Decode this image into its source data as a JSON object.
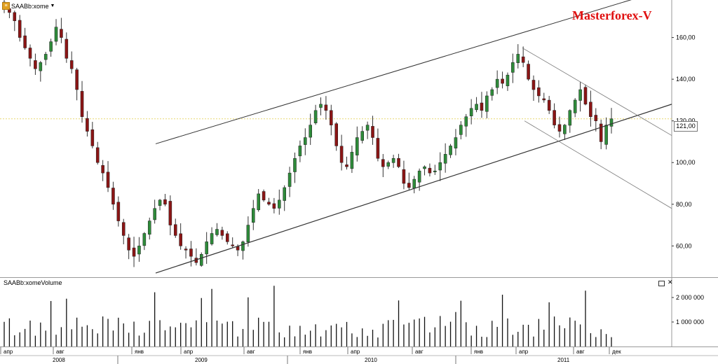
{
  "header": {
    "symbol_label": "SAABb:xome",
    "symbol_icon": "instrument-icon",
    "dropdown_icon": "chevron-down-icon"
  },
  "watermark": "Masterforex-V",
  "price_axis": {
    "ticks": [
      "160,00",
      "140,00",
      "120,00",
      "100,00",
      "80,00",
      "60,00"
    ],
    "last_price": "121,00"
  },
  "volume_pane": {
    "title": "SAABb:xomeVolume",
    "ticks": [
      "2 000 000",
      "1 000 000"
    ]
  },
  "time_axis": {
    "months": [
      "апр",
      "авг",
      "янв",
      "апр",
      "авг",
      "янв",
      "апр",
      "авг",
      "янв",
      "апр",
      "авг",
      "дек"
    ],
    "years": [
      "2008",
      "2009",
      "2010",
      "2011"
    ]
  },
  "chart_data": {
    "type": "candlestick",
    "price_unit": "SEK",
    "y_range": [
      45,
      178
    ],
    "volume_range": [
      0,
      2800000
    ],
    "colors": {
      "up": "#2e8b3a",
      "down": "#8b1515",
      "channel": "#555555",
      "last_price_line": "#e8d870"
    },
    "weekly_close_approx": [
      175,
      172,
      168,
      160,
      155,
      150,
      145,
      148,
      152,
      158,
      165,
      160,
      150,
      145,
      135,
      122,
      115,
      108,
      100,
      95,
      88,
      80,
      72,
      65,
      58,
      55,
      60,
      66,
      72,
      78,
      82,
      80,
      70,
      65,
      60,
      58,
      55,
      52,
      56,
      62,
      66,
      68,
      65,
      62,
      60,
      58,
      62,
      70,
      78,
      85,
      82,
      80,
      78,
      82,
      88,
      95,
      102,
      108,
      112,
      118,
      125,
      128,
      125,
      118,
      108,
      100,
      98,
      105,
      112,
      115,
      118,
      112,
      102,
      98,
      100,
      102,
      98,
      90,
      88,
      92,
      96,
      98,
      95,
      96,
      100,
      104,
      108,
      112,
      118,
      122,
      126,
      128,
      125,
      132,
      135,
      140,
      138,
      142,
      148,
      152,
      148,
      140,
      135,
      132,
      130,
      125,
      118,
      115,
      118,
      125,
      130,
      135,
      128,
      122,
      120,
      110,
      118,
      121
    ],
    "trend_lines": "ascending channel (upper and lower parallel lines), descending channel (two thin parallel lines)"
  }
}
